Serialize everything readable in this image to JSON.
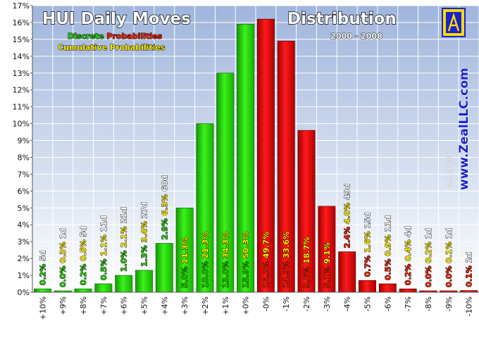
{
  "chart_data": {
    "type": "bar",
    "title_left": "HUI Daily Moves",
    "title_right": "Distribution",
    "subtitle": "2000 - 2008",
    "legend_line1": {
      "part1": "Discrete",
      "part2": "Probabilities"
    },
    "legend_line2": "Cumulative Probabilities",
    "watermark": "www.ZealLLC.com",
    "date_note": "4.1.2008",
    "xlabel": "",
    "ylabel": "",
    "ylim": [
      0,
      17
    ],
    "y_ticks": [
      "0%",
      "1%",
      "2%",
      "3%",
      "4%",
      "5%",
      "6%",
      "7%",
      "8%",
      "9%",
      "10%",
      "11%",
      "12%",
      "13%",
      "14%",
      "15%",
      "16%",
      "17%"
    ],
    "grid": true,
    "categories": [
      "+10%",
      "+9%",
      "+8%",
      "+7%",
      "+6%",
      "+5%",
      "+4%",
      "+3%",
      "+2%",
      "+1%",
      "+0%",
      "-0%",
      "-1%",
      "-2%",
      "-3%",
      "-4%",
      "-5%",
      "-6%",
      "-7%",
      "-8%",
      "-9%",
      "-10%"
    ],
    "values": [
      0.2,
      0.0,
      0.2,
      0.5,
      1.0,
      1.3,
      2.9,
      5.0,
      10.0,
      13.0,
      15.9,
      16.2,
      14.9,
      9.6,
      5.1,
      2.4,
      0.7,
      0.5,
      0.2,
      0.0,
      0.0,
      0.1
    ],
    "discrete_labels": [
      "0.2%",
      "0.0%",
      "0.2%",
      "0.5%",
      "1.0%",
      "1.3%",
      "2.9%",
      "5.0%",
      "10.0%",
      "13.0%",
      "15.9%",
      "16.2%",
      "14.9%",
      "9.6%",
      "5.1%",
      "2.4%",
      "0.7%",
      "0.5%",
      "0.2%",
      "0.0%",
      "0.0%",
      "0.1%"
    ],
    "cumulative_labels": [
      "",
      "0.3%",
      "0.5%",
      "1.1%",
      "2.1%",
      "3.4%",
      "6.3%",
      "11.3%",
      "21.3%",
      "34.3%",
      "50.3%",
      "49.7%",
      "33.6%",
      "18.7%",
      "9.1%",
      "4.0%",
      "1.6%",
      "0.9%",
      "0.4%",
      "0.2%",
      "0.1%",
      ""
    ],
    "day_counts": [
      "5d",
      "1d",
      "5d",
      "11d",
      "21d",
      "27d",
      "60d",
      "",
      "",
      "",
      "",
      "",
      "",
      "",
      "",
      "49d",
      "15d",
      "11d",
      "4d",
      "1d",
      "1d",
      "2d"
    ],
    "colors": {
      "positive": "#22dd00",
      "negative": "#e00000",
      "green_text": "#22cc00",
      "red_text": "#ee2200",
      "yellow_text": "#ffee00",
      "watermark": "#1a22cc"
    }
  }
}
